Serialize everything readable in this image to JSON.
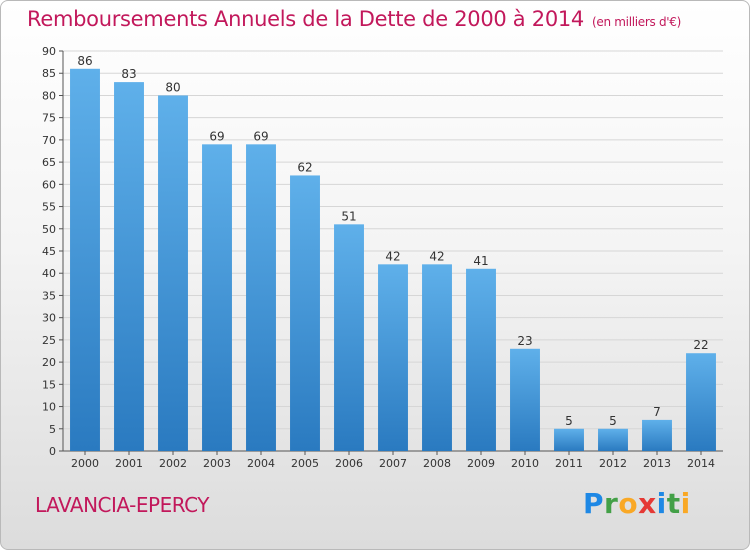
{
  "colors": {
    "accent": "#c2185b",
    "bar_light": "#5fb0ea",
    "bar_dark": "#2a7ac0"
  },
  "commune": "LAVANCIA-EPERCY",
  "logo": {
    "letters": [
      {
        "char": "P",
        "color": "#1e88e5"
      },
      {
        "char": "r",
        "color": "#43a047"
      },
      {
        "char": "o",
        "color": "#f9a825"
      },
      {
        "char": "x",
        "color": "#e53935"
      },
      {
        "char": "i",
        "color": "#1e88e5"
      },
      {
        "char": "t",
        "color": "#43a047"
      },
      {
        "char": "i",
        "color": "#f9a825"
      }
    ]
  },
  "chart_data": {
    "type": "bar",
    "title": "Remboursements Annuels de la Dette de 2000 à 2014",
    "subtitle": "(en milliers d'€)",
    "xlabel": "",
    "ylabel": "",
    "categories": [
      "2000",
      "2001",
      "2002",
      "2003",
      "2004",
      "2005",
      "2006",
      "2007",
      "2008",
      "2009",
      "2010",
      "2011",
      "2012",
      "2013",
      "2014"
    ],
    "values": [
      86,
      83,
      80,
      69,
      69,
      62,
      51,
      42,
      42,
      41,
      23,
      5,
      5,
      7,
      22
    ],
    "ylim": [
      0,
      90
    ],
    "yticks": [
      0,
      5,
      10,
      15,
      20,
      25,
      30,
      35,
      40,
      45,
      50,
      55,
      60,
      65,
      70,
      75,
      80,
      85,
      90
    ],
    "grid": true,
    "legend": "none"
  }
}
